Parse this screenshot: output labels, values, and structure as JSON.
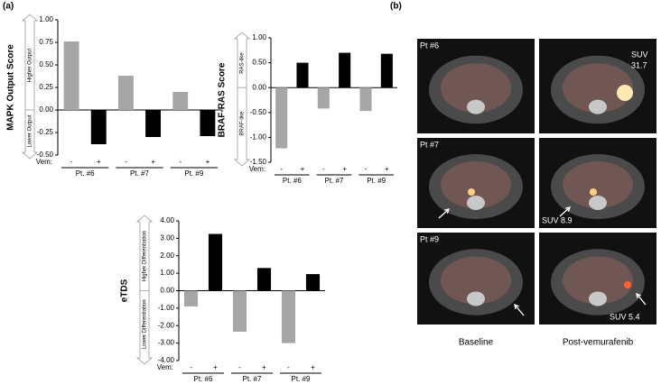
{
  "panel_labels": [
    "(a)",
    "(b)"
  ],
  "chart_data": [
    {
      "type": "bar",
      "ylabel": "MAPK Output Score",
      "annotations": {
        "upper": "Higher Output",
        "lower": "Lower Output"
      },
      "categories": [
        "-",
        "+",
        "-",
        "+",
        "-",
        "+"
      ],
      "values": [
        0.76,
        -0.38,
        0.38,
        -0.3,
        0.2,
        -0.29
      ],
      "colors": [
        "#a6a6a6",
        "#000000",
        "#a6a6a6",
        "#000000",
        "#a6a6a6",
        "#000000"
      ],
      "groups": [
        "Pt. #6",
        "Pt. #7",
        "Pt. #9"
      ],
      "group_label": "Vem:",
      "ylim": [
        -0.5,
        1
      ],
      "yticks": [
        {
          "value": 1,
          "label": "1.00"
        },
        0.75,
        {
          "value": 0.5,
          "label": "0.50"
        },
        0.25,
        {
          "value": 0,
          "label": "0.00"
        },
        -0.25,
        {
          "value": -0.5,
          "label": "-0.50"
        }
      ]
    },
    {
      "type": "bar",
      "ylabel": "BRAF-RAS Score",
      "annotations": {
        "upper": "RAS-like",
        "lower": "BRAF-like"
      },
      "categories": [
        "-",
        "+",
        "-",
        "+",
        "-",
        "+"
      ],
      "values": [
        -1.22,
        0.5,
        -0.42,
        0.7,
        -0.47,
        0.68
      ],
      "colors": [
        "#a6a6a6",
        "#000000",
        "#a6a6a6",
        "#000000",
        "#a6a6a6",
        "#000000"
      ],
      "groups": [
        "Pt. #6",
        "Pt. #7",
        "Pt. #9"
      ],
      "group_label": "Vem:",
      "ylim": [
        -1.5,
        1
      ],
      "yticks": [
        {
          "value": 1,
          "label": "1.00"
        },
        {
          "value": 0.5,
          "label": "0.50"
        },
        {
          "value": 0,
          "label": "0.00"
        },
        {
          "value": -0.5,
          "label": "-0.50"
        },
        {
          "value": -1,
          "label": "-1.00"
        },
        {
          "value": -1.5,
          "label": "-1.50"
        }
      ]
    },
    {
      "type": "bar",
      "ylabel": "eTDS",
      "annotations": {
        "upper": "Higher Differentiation",
        "lower": "Lower Differentiation"
      },
      "categories": [
        "-",
        "+",
        "-",
        "+",
        "-",
        "+"
      ],
      "values": [
        -0.9,
        3.25,
        -2.35,
        1.3,
        -3.0,
        0.95
      ],
      "colors": [
        "#a6a6a6",
        "#000000",
        "#a6a6a6",
        "#000000",
        "#a6a6a6",
        "#000000"
      ],
      "groups": [
        "Pt. #6",
        "Pt. #7",
        "Pt. #9"
      ],
      "group_label": "Vem:",
      "ylim": [
        -4,
        4
      ],
      "yticks": [
        {
          "value": 4,
          "label": "4.00"
        },
        {
          "value": 3,
          "label": "3.00"
        },
        {
          "value": 2,
          "label": "2.00"
        },
        {
          "value": 1,
          "label": "1.00"
        },
        {
          "value": 0,
          "label": "0.00"
        },
        {
          "value": -1,
          "label": "-1.00"
        },
        {
          "value": -2,
          "label": "-2.00"
        },
        {
          "value": -3,
          "label": "-3.00"
        },
        {
          "value": -4,
          "label": "-4.00"
        }
      ]
    }
  ],
  "scans": {
    "rows": [
      {
        "label": "Pt #6",
        "post_suv": [
          "SUV",
          "31.7"
        ]
      },
      {
        "label": "Pt #7",
        "post_suv": [
          "SUV 8.9"
        ]
      },
      {
        "label": "Pt #9",
        "post_suv": [
          "SUV  5.4"
        ]
      }
    ],
    "columns": [
      "Baseline",
      "Post-vemurafenib"
    ]
  }
}
